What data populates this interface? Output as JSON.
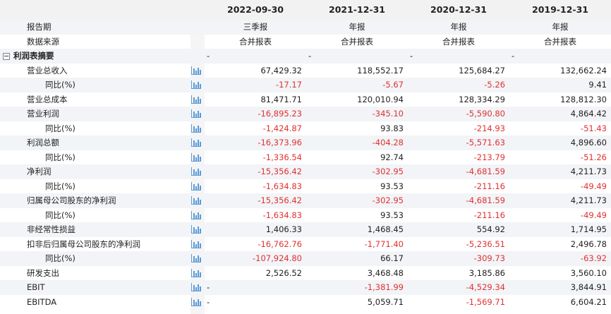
{
  "columns": [
    "2022-09-30",
    "2021-12-31",
    "2020-12-31",
    "2019-12-31"
  ],
  "meta": [
    {
      "label": "报告期",
      "values": [
        "三季报",
        "年报",
        "年报",
        "年报"
      ]
    },
    {
      "label": "数据来源",
      "values": [
        "合并报表",
        "合并报表",
        "合并报表",
        "合并报表"
      ]
    }
  ],
  "section": {
    "label": "利润表摘要",
    "values": [
      "-",
      "-",
      "-",
      "-"
    ]
  },
  "rows": [
    {
      "label": "营业总收入",
      "values": [
        "67,429.32",
        "118,552.17",
        "125,684.27",
        "132,662.24"
      ],
      "sub": false
    },
    {
      "label": "同比(%)",
      "values": [
        "-17.17",
        "-5.67",
        "-5.26",
        "9.41"
      ],
      "sub": true
    },
    {
      "label": "营业总成本",
      "values": [
        "81,471.71",
        "120,010.94",
        "128,334.29",
        "128,812.30"
      ],
      "sub": false
    },
    {
      "label": "营业利润",
      "values": [
        "-16,895.23",
        "-345.10",
        "-5,590.80",
        "4,864.42"
      ],
      "sub": false
    },
    {
      "label": "同比(%)",
      "values": [
        "-1,424.87",
        "93.83",
        "-214.93",
        "-51.43"
      ],
      "sub": true
    },
    {
      "label": "利润总额",
      "values": [
        "-16,373.96",
        "-404.28",
        "-5,571.63",
        "4,896.60"
      ],
      "sub": false
    },
    {
      "label": "同比(%)",
      "values": [
        "-1,336.54",
        "92.74",
        "-213.79",
        "-51.26"
      ],
      "sub": true
    },
    {
      "label": "净利润",
      "values": [
        "-15,356.42",
        "-302.95",
        "-4,681.59",
        "4,211.73"
      ],
      "sub": false
    },
    {
      "label": "同比(%)",
      "values": [
        "-1,634.83",
        "93.53",
        "-211.16",
        "-49.49"
      ],
      "sub": true
    },
    {
      "label": "归属母公司股东的净利润",
      "values": [
        "-15,356.42",
        "-302.95",
        "-4,681.59",
        "4,211.73"
      ],
      "sub": false
    },
    {
      "label": "同比(%)",
      "values": [
        "-1,634.83",
        "93.53",
        "-211.16",
        "-49.49"
      ],
      "sub": true
    },
    {
      "label": "非经常性损益",
      "values": [
        "1,406.33",
        "1,468.45",
        "554.92",
        "1,714.95"
      ],
      "sub": false
    },
    {
      "label": "扣非后归属母公司股东的净利润",
      "values": [
        "-16,762.76",
        "-1,771.40",
        "-5,236.51",
        "2,496.78"
      ],
      "sub": false
    },
    {
      "label": "同比(%)",
      "values": [
        "-107,924.80",
        "66.17",
        "-309.73",
        "-63.92"
      ],
      "sub": true
    },
    {
      "label": "研发支出",
      "values": [
        "2,526.52",
        "3,468.48",
        "3,185.86",
        "3,560.10"
      ],
      "sub": false
    },
    {
      "label": "EBIT",
      "values": [
        "-",
        "-1,381.99",
        "-4,529.34",
        "3,844.91"
      ],
      "sub": false
    },
    {
      "label": "EBITDA",
      "values": [
        "-",
        "5,059.71",
        "-1,569.71",
        "6,604.21"
      ],
      "sub": false
    }
  ],
  "colors": {
    "negative": "#e03131",
    "icon": "#5b9bd5",
    "alt_row": "#f2f4f7"
  }
}
